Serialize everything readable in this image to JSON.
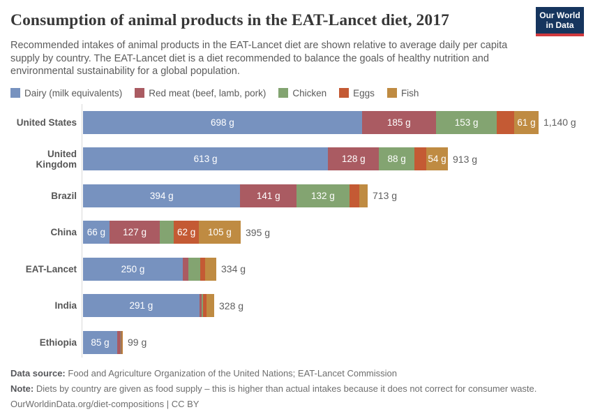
{
  "header": {
    "title": "Consumption of animal products in the EAT-Lancet diet, 2017",
    "subtitle": "Recommended intakes of animal products in the EAT-Lancet diet are shown relative to average daily per capita supply by country. The EAT-Lancet diet is a diet recommended to balance the goals of healthy nutrition and environmental sustainability for a global population.",
    "logo": {
      "line1": "Our World",
      "line2": "in Data",
      "bg_color": "#16355e",
      "accent_color": "#d0393e"
    }
  },
  "legend": [
    {
      "label": "Dairy (milk equivalents)",
      "color": "#7792bf"
    },
    {
      "label": "Red meat (beef, lamb, pork)",
      "color": "#aa5b62"
    },
    {
      "label": "Chicken",
      "color": "#83a471"
    },
    {
      "label": "Eggs",
      "color": "#c45a34"
    },
    {
      "label": "Fish",
      "color": "#bf8b42"
    }
  ],
  "chart_data": {
    "type": "bar",
    "orientation": "horizontal",
    "stacked": true,
    "unit": "g",
    "legend_position": "top",
    "grid": false,
    "x_max": 1140,
    "categories": [
      "United States",
      "United Kingdom",
      "Brazil",
      "China",
      "EAT-Lancet",
      "India",
      "Ethiopia"
    ],
    "series": [
      {
        "name": "Dairy (milk equivalents)",
        "color": "#7792bf",
        "values": [
          698,
          613,
          394,
          66,
          250,
          291,
          85
        ]
      },
      {
        "name": "Red meat (beef, lamb, pork)",
        "color": "#aa5b62",
        "values": [
          185,
          128,
          141,
          127,
          14,
          5,
          9
        ]
      },
      {
        "name": "Chicken",
        "color": "#83a471",
        "values": [
          153,
          88,
          132,
          35,
          29,
          4,
          2
        ]
      },
      {
        "name": "Eggs",
        "color": "#c45a34",
        "values": [
          43,
          30,
          25,
          62,
          13,
          8,
          1
        ]
      },
      {
        "name": "Fish",
        "color": "#bf8b42",
        "values": [
          61,
          54,
          21,
          105,
          28,
          20,
          2
        ]
      }
    ],
    "segment_labels": [
      [
        "698 g",
        "185 g",
        "153 g",
        "",
        "61 g"
      ],
      [
        "613 g",
        "128 g",
        "88 g",
        "",
        "54 g"
      ],
      [
        "394 g",
        "141 g",
        "132 g",
        "",
        ""
      ],
      [
        "66 g",
        "127 g",
        "",
        "62 g",
        "105 g"
      ],
      [
        "250 g",
        "",
        "",
        "",
        ""
      ],
      [
        "291 g",
        "",
        "",
        "",
        ""
      ],
      [
        "85 g",
        "",
        "",
        "",
        ""
      ]
    ],
    "totals": [
      "1,140 g",
      "913 g",
      "713 g",
      "395 g",
      "334 g",
      "328 g",
      "99 g"
    ],
    "total_values": [
      1140,
      913,
      713,
      395,
      334,
      328,
      99
    ]
  },
  "footer": {
    "source_label": "Data source:",
    "source_text": "Food and Agriculture Organization of the United Nations; EAT-Lancet Commission",
    "note_label": "Note:",
    "note_text": "Diets by country are given as food supply – this is higher than actual intakes because it does not correct for consumer waste.",
    "link_text": "OurWorldinData.org/diet-compositions",
    "license_text": "CC BY",
    "separator": " | "
  }
}
